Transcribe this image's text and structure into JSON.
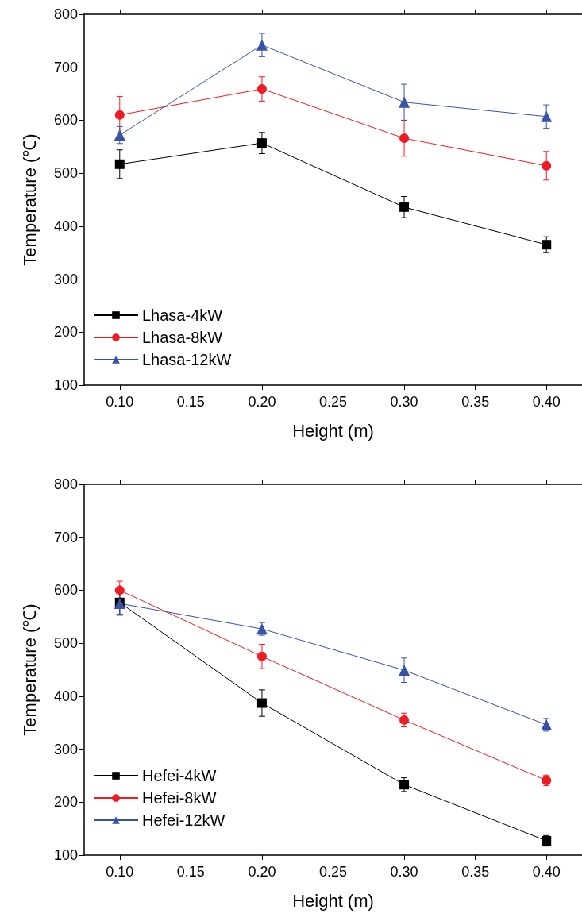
{
  "chart_data": [
    {
      "type": "line",
      "xlabel": "Height (m)",
      "ylabel": "Temperature (℃)",
      "x": [
        0.1,
        0.2,
        0.3,
        0.4
      ],
      "xlim": [
        0.075,
        0.425
      ],
      "xticks": [
        {
          "value": 0.1,
          "label": "0.10"
        },
        {
          "value": 0.15,
          "label": "0.15"
        },
        {
          "value": 0.2,
          "label": "0.20"
        },
        {
          "value": 0.25,
          "label": "0.25"
        },
        {
          "value": 0.3,
          "label": "0.30"
        },
        {
          "value": 0.35,
          "label": "0.35"
        },
        {
          "value": 0.4,
          "label": "0.40"
        }
      ],
      "ylim": [
        100,
        800
      ],
      "yticks": [
        100,
        200,
        300,
        400,
        500,
        600,
        700,
        800
      ],
      "grid": false,
      "legend": "bottom left",
      "line_style": "solid",
      "series": [
        {
          "name": "Lhasa-4kW",
          "color": "#000000",
          "marker": "square",
          "values": [
            517,
            557,
            436,
            365
          ],
          "errors": [
            27,
            20,
            20,
            15
          ]
        },
        {
          "name": "Lhasa-8kW",
          "color": "#ee1c25",
          "marker": "circle",
          "values": [
            610,
            659,
            566,
            514
          ],
          "errors": [
            35,
            23,
            34,
            27
          ]
        },
        {
          "name": "Lhasa-12kW",
          "color": "#3953a4",
          "marker": "triangle",
          "values": [
            572,
            742,
            634,
            607
          ],
          "errors": [
            16,
            22,
            34,
            22
          ]
        }
      ]
    },
    {
      "type": "line",
      "xlabel": "Height (m)",
      "ylabel": "Temperature (℃)",
      "x": [
        0.1,
        0.2,
        0.3,
        0.4
      ],
      "xlim": [
        0.075,
        0.425
      ],
      "xticks": [
        {
          "value": 0.1,
          "label": "0.10"
        },
        {
          "value": 0.15,
          "label": "0.15"
        },
        {
          "value": 0.2,
          "label": "0.20"
        },
        {
          "value": 0.25,
          "label": "0.25"
        },
        {
          "value": 0.3,
          "label": "0.30"
        },
        {
          "value": 0.35,
          "label": "0.35"
        },
        {
          "value": 0.4,
          "label": "0.40"
        }
      ],
      "ylim": [
        100,
        800
      ],
      "yticks": [
        100,
        200,
        300,
        400,
        500,
        600,
        700,
        800
      ],
      "grid": false,
      "legend": "bottom left",
      "line_style": "solid",
      "series": [
        {
          "name": "Hefei-4kW",
          "color": "#000000",
          "marker": "square",
          "values": [
            577,
            387,
            233,
            127
          ],
          "errors": [
            24,
            25,
            13,
            10
          ]
        },
        {
          "name": "Hefei-8kW",
          "color": "#ee1c25",
          "marker": "circle",
          "values": [
            600,
            475,
            355,
            241
          ],
          "errors": [
            17,
            23,
            13,
            10
          ]
        },
        {
          "name": "Hefei-12kW",
          "color": "#3953a4",
          "marker": "triangle",
          "values": [
            575,
            527,
            449,
            346
          ],
          "errors": [
            20,
            12,
            23,
            12
          ]
        }
      ]
    }
  ]
}
